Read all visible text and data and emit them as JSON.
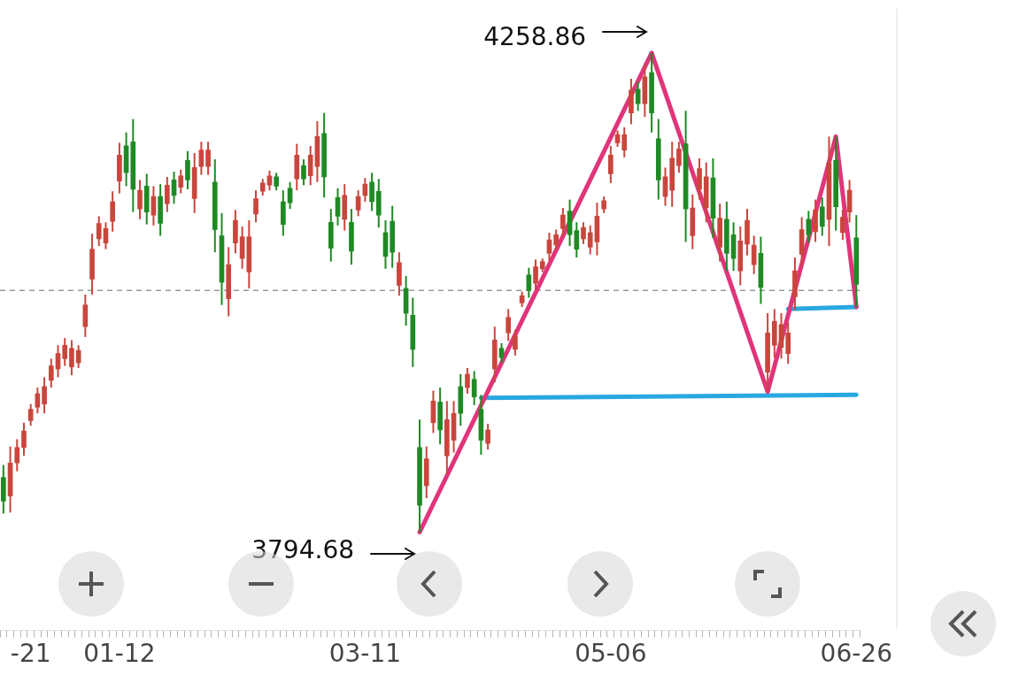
{
  "chart_data": {
    "type": "candlestick",
    "tick_labels": "x",
    "categories": [
      null,
      null,
      null,
      null,
      "-21",
      null,
      null,
      null,
      null,
      null,
      null,
      null,
      null,
      null,
      null,
      null,
      null,
      "01-12",
      null,
      null,
      null,
      null,
      null,
      null,
      null,
      null,
      null,
      null,
      null,
      null,
      null,
      null,
      null,
      null,
      null,
      null,
      null,
      null,
      null,
      null,
      null,
      null,
      null,
      null,
      null,
      null,
      null,
      null,
      null,
      null,
      null,
      null,
      null,
      "03-11",
      null,
      null,
      null,
      null,
      null,
      null,
      null,
      null,
      null,
      null,
      null,
      null,
      null,
      null,
      null,
      null,
      null,
      null,
      null,
      null,
      null,
      null,
      null,
      null,
      null,
      null,
      null,
      null,
      null,
      null,
      null,
      null,
      null,
      null,
      null,
      "05-06",
      null,
      null,
      null,
      null,
      null,
      null,
      null,
      null,
      null,
      null,
      null,
      null,
      null,
      null,
      null,
      null,
      null,
      null,
      null,
      null,
      null,
      null,
      null,
      null,
      null,
      null,
      null,
      null,
      null,
      null,
      null,
      null,
      null,
      null,
      null,
      "06-26"
    ],
    "series": [
      {
        "type": "line",
        "color": "#e0357a",
        "values": [
          null,
          null,
          null,
          null,
          null,
          null,
          null,
          null,
          null,
          null,
          null,
          null,
          null,
          null,
          null,
          null,
          null,
          null,
          null,
          null,
          null,
          null,
          null,
          null,
          null,
          null,
          null,
          null,
          null,
          null,
          null,
          null,
          null,
          null,
          null,
          null,
          null,
          null,
          null,
          null,
          null,
          null,
          null,
          null,
          null,
          null,
          null,
          null,
          null,
          null,
          null,
          null,
          null,
          null,
          null,
          null,
          null,
          null,
          null,
          null,
          null,
          3795,
          null,
          null,
          null,
          null,
          null,
          null,
          null,
          null,
          null,
          null,
          null,
          null,
          null,
          null,
          null,
          null,
          null,
          null,
          null,
          null,
          null,
          null,
          null,
          null,
          null,
          null,
          null,
          null,
          null,
          null,
          null,
          null,
          null,
          4259,
          null,
          null,
          null,
          null,
          null,
          null,
          null,
          null,
          null,
          null,
          null,
          null,
          null,
          null,
          null,
          null,
          3931,
          null,
          null,
          null,
          null,
          null,
          null,
          null,
          null,
          null,
          4178,
          null,
          null,
          4013
        ]
      },
      {
        "type": "line",
        "color": "#29a8e0",
        "values": [
          null,
          null,
          null,
          null,
          null,
          null,
          null,
          null,
          null,
          null,
          null,
          null,
          null,
          null,
          null,
          null,
          null,
          null,
          null,
          null,
          null,
          null,
          null,
          null,
          null,
          null,
          null,
          null,
          null,
          null,
          null,
          null,
          null,
          null,
          null,
          null,
          null,
          null,
          null,
          null,
          null,
          null,
          null,
          null,
          null,
          null,
          null,
          null,
          null,
          null,
          null,
          null,
          null,
          null,
          null,
          null,
          null,
          null,
          null,
          null,
          null,
          null,
          null,
          null,
          null,
          null,
          null,
          null,
          null,
          null,
          3925,
          null,
          null,
          null,
          null,
          null,
          null,
          null,
          null,
          null,
          null,
          null,
          null,
          null,
          null,
          null,
          null,
          null,
          null,
          null,
          null,
          null,
          null,
          null,
          null,
          null,
          null,
          null,
          null,
          null,
          null,
          null,
          null,
          null,
          null,
          null,
          null,
          null,
          null,
          null,
          null,
          null,
          null,
          null,
          null,
          null,
          null,
          null,
          null,
          null,
          null,
          null,
          null,
          null,
          null,
          3928
        ]
      },
      {
        "type": "line",
        "color": "#29a8e0",
        "values": [
          null,
          null,
          null,
          null,
          null,
          null,
          null,
          null,
          null,
          null,
          null,
          null,
          null,
          null,
          null,
          null,
          null,
          null,
          null,
          null,
          null,
          null,
          null,
          null,
          null,
          null,
          null,
          null,
          null,
          null,
          null,
          null,
          null,
          null,
          null,
          null,
          null,
          null,
          null,
          null,
          null,
          null,
          null,
          null,
          null,
          null,
          null,
          null,
          null,
          null,
          null,
          null,
          null,
          null,
          null,
          null,
          null,
          null,
          null,
          null,
          null,
          null,
          null,
          null,
          null,
          null,
          null,
          null,
          null,
          null,
          null,
          null,
          null,
          null,
          null,
          null,
          null,
          null,
          null,
          null,
          null,
          null,
          null,
          null,
          null,
          null,
          null,
          null,
          null,
          null,
          null,
          null,
          null,
          null,
          null,
          null,
          null,
          null,
          null,
          null,
          null,
          null,
          null,
          null,
          null,
          null,
          null,
          null,
          null,
          null,
          null,
          null,
          null,
          null,
          null,
          4011,
          null,
          null,
          null,
          null,
          null,
          null,
          null,
          null,
          null,
          4013
        ]
      },
      {
        "ohlc": [
          [
            3848,
            3860,
            3813,
            3825
          ],
          [
            3830,
            3878,
            3814,
            3862
          ],
          [
            3862,
            3885,
            3854,
            3877
          ],
          [
            3877,
            3901,
            3869,
            3893
          ],
          [
            3903,
            3919,
            3898,
            3914
          ],
          [
            3916,
            3935,
            3910,
            3929
          ],
          [
            3919,
            3945,
            3910,
            3936
          ],
          [
            3942,
            3963,
            3935,
            3956
          ],
          [
            3953,
            3976,
            3945,
            3968
          ],
          [
            3963,
            3983,
            3956,
            3976
          ],
          [
            3955,
            3981,
            3947,
            3973
          ],
          [
            3959,
            3976,
            3954,
            3971
          ],
          [
            3994,
            4025,
            3984,
            4015
          ],
          [
            4040,
            4084,
            4025,
            4069
          ],
          [
            4079,
            4101,
            4072,
            4094
          ],
          [
            4075,
            4095,
            4069,
            4089
          ],
          [
            4096,
            4125,
            4086,
            4115
          ],
          [
            4135,
            4172,
            4123,
            4160
          ],
          [
            4169,
            4182,
            4130,
            4143
          ],
          [
            4173,
            4195,
            4105,
            4127
          ],
          [
            4108,
            4136,
            4098,
            4126
          ],
          [
            4130,
            4142,
            4093,
            4105
          ],
          [
            4102,
            4130,
            4092,
            4120
          ],
          [
            4120,
            4132,
            4082,
            4094
          ],
          [
            4113,
            4139,
            4105,
            4131
          ],
          [
            4136,
            4144,
            4113,
            4121
          ],
          [
            4129,
            4146,
            4123,
            4140
          ],
          [
            4155,
            4164,
            4127,
            4136
          ],
          [
            4118,
            4162,
            4104,
            4148
          ],
          [
            4149,
            4173,
            4141,
            4165
          ],
          [
            4149,
            4173,
            4141,
            4165
          ],
          [
            4134,
            4156,
            4066,
            4088
          ],
          [
            4082,
            4104,
            4015,
            4037
          ],
          [
            4021,
            4071,
            4004,
            4054
          ],
          [
            4075,
            4107,
            4065,
            4097
          ],
          [
            4060,
            4091,
            4050,
            4081
          ],
          [
            4047,
            4097,
            4031,
            4081
          ],
          [
            4103,
            4126,
            4095,
            4118
          ],
          [
            4125,
            4137,
            4121,
            4133
          ],
          [
            4131,
            4145,
            4126,
            4140
          ],
          [
            4139,
            4143,
            4126,
            4130
          ],
          [
            4115,
            4126,
            4082,
            4093
          ],
          [
            4128,
            4134,
            4108,
            4114
          ],
          [
            4137,
            4171,
            4126,
            4160
          ],
          [
            4150,
            4156,
            4131,
            4137
          ],
          [
            4140,
            4169,
            4131,
            4160
          ],
          [
            4149,
            4193,
            4134,
            4178
          ],
          [
            4181,
            4201,
            4119,
            4139
          ],
          [
            4095,
            4108,
            4057,
            4070
          ],
          [
            4119,
            4128,
            4092,
            4101
          ],
          [
            4098,
            4132,
            4087,
            4121
          ],
          [
            4095,
            4108,
            4054,
            4067
          ],
          [
            4107,
            4126,
            4101,
            4120
          ],
          [
            4121,
            4138,
            4115,
            4132
          ],
          [
            4134,
            4143,
            4106,
            4115
          ],
          [
            4125,
            4137,
            4090,
            4102
          ],
          [
            4085,
            4097,
            4050,
            4062
          ],
          [
            4096,
            4111,
            4051,
            4066
          ],
          [
            4034,
            4066,
            4024,
            4056
          ],
          [
            4031,
            4043,
            3995,
            4007
          ],
          [
            4005,
            4022,
            3955,
            3972
          ],
          [
            3877,
            3904,
            3794.68,
            3821
          ],
          [
            3840,
            3878,
            3828,
            3866
          ],
          [
            3901,
            3932,
            3891,
            3922
          ],
          [
            3921,
            3935,
            3880,
            3894
          ],
          [
            3869,
            3922,
            3851,
            3904
          ],
          [
            3884,
            3922,
            3872,
            3910
          ],
          [
            3936,
            3948,
            3898,
            3910
          ],
          [
            3935,
            3954,
            3929,
            3948
          ],
          [
            3943,
            3951,
            3918,
            3926
          ],
          [
            3914,
            3928,
            3870,
            3884
          ],
          [
            3881,
            3900,
            3875,
            3894
          ],
          [
            3953,
            3994,
            3940,
            3981
          ],
          [
            3973,
            3978,
            3959,
            3964
          ],
          [
            3988,
            4011,
            3980,
            4003
          ],
          [
            3972,
            3991,
            3966,
            3985
          ],
          [
            4017,
            4028,
            4013,
            4024
          ],
          [
            4044,
            4051,
            4022,
            4029
          ],
          [
            4036,
            4059,
            4029,
            4052
          ],
          [
            4050,
            4060,
            4047,
            4057
          ],
          [
            4065,
            4085,
            4058,
            4078
          ],
          [
            4073,
            4088,
            4068,
            4083
          ],
          [
            4089,
            4109,
            4082,
            4102
          ],
          [
            4106,
            4117,
            4072,
            4083
          ],
          [
            4087,
            4095,
            4061,
            4069
          ],
          [
            4079,
            4095,
            4074,
            4090
          ],
          [
            4071,
            4092,
            4064,
            4085
          ],
          [
            4076,
            4114,
            4063,
            4101
          ],
          [
            4108,
            4120,
            4104,
            4116
          ],
          [
            4142,
            4169,
            4133,
            4160
          ],
          [
            4172,
            4184,
            4168,
            4180
          ],
          [
            4165,
            4187,
            4158,
            4180
          ],
          [
            4201,
            4234,
            4190,
            4223
          ],
          [
            4224,
            4231,
            4203,
            4210
          ],
          [
            4210,
            4249,
            4197,
            4236
          ],
          [
            4240,
            4258.86,
            4182,
            4201
          ],
          [
            4176,
            4195,
            4117,
            4136
          ],
          [
            4120,
            4148,
            4111,
            4139
          ],
          [
            4126,
            4173,
            4110,
            4157
          ],
          [
            4150,
            4173,
            4143,
            4166
          ],
          [
            4171,
            4203,
            4076,
            4108
          ],
          [
            4082,
            4122,
            4069,
            4109
          ],
          [
            4127,
            4157,
            4117,
            4147
          ],
          [
            4109,
            4153,
            4095,
            4139
          ],
          [
            4138,
            4157,
            4080,
            4099
          ],
          [
            4071,
            4113,
            4057,
            4099
          ],
          [
            4098,
            4115,
            4048,
            4065
          ],
          [
            4083,
            4095,
            4048,
            4060
          ],
          [
            4048,
            4091,
            4034,
            4077
          ],
          [
            4074,
            4108,
            4063,
            4097
          ],
          [
            4054,
            4082,
            4045,
            4073
          ],
          [
            4065,
            4081,
            4016,
            4032
          ],
          [
            3950,
            4007,
            3931,
            3988
          ],
          [
            3976,
            4011,
            3964,
            3999
          ],
          [
            3974,
            4007,
            3963,
            3996
          ],
          [
            3968,
            3998,
            3958,
            3988
          ],
          [
            4023,
            4061,
            4010,
            4048
          ],
          [
            4064,
            4100,
            4052,
            4088
          ],
          [
            4098,
            4106,
            4075,
            4083
          ],
          [
            4086,
            4117,
            4076,
            4107
          ],
          [
            4110,
            4119,
            4082,
            4091
          ],
          [
            4098,
            4178,
            4072,
            4152
          ],
          [
            4155,
            4178,
            4087,
            4110
          ],
          [
            4085,
            4107,
            4078,
            4100
          ],
          [
            4105,
            4136,
            4095,
            4126
          ],
          [
            4080,
            4102,
            4013,
            4035
          ]
        ]
      }
    ],
    "ref_lines": [
      {
        "axis": "y",
        "value": 4029,
        "color": "#9a9a9a",
        "line_style": "dashed"
      }
    ],
    "annotations": [
      "4258.86",
      "3794.68"
    ]
  }
}
